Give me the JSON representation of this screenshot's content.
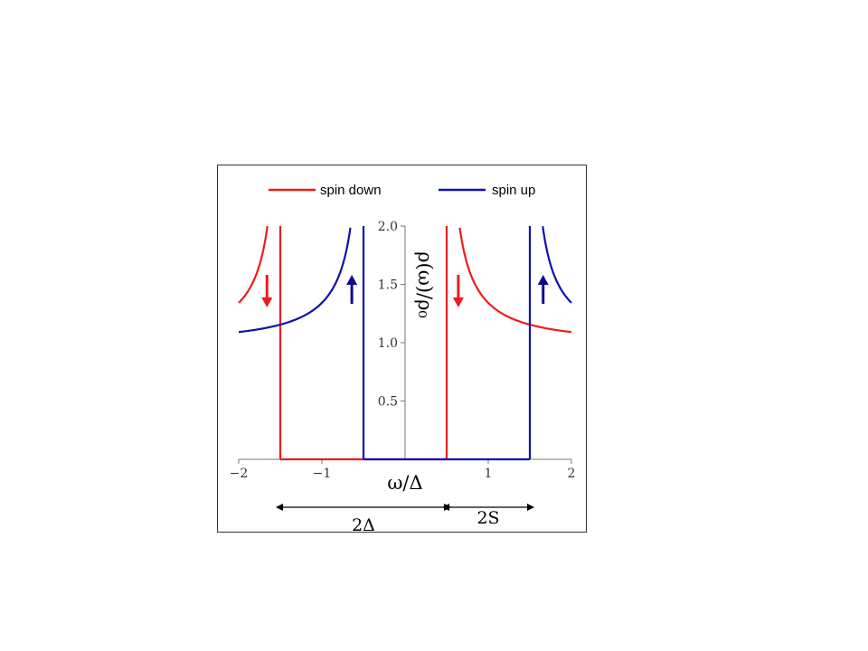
{
  "chart_data": {
    "type": "line",
    "xlabel": "ω/Δ",
    "ylabel": "ρ(ω)/ρ₀",
    "xlim": [
      -2,
      2
    ],
    "ylim": [
      0,
      2.0
    ],
    "x_ticks": [
      -2,
      -1,
      1,
      2
    ],
    "x_tick_labels": [
      "−2",
      "−1",
      "1",
      "2"
    ],
    "y_ticks": [
      0.5,
      1.0,
      1.5,
      2.0
    ],
    "y_tick_labels": [
      "0.5",
      "1.0",
      "1.5",
      "2.0"
    ],
    "params": {
      "gap": 1.0,
      "splitting": 0.5
    },
    "series": [
      {
        "name": "spin down",
        "color": "#ee1c1c",
        "gap_edges": [
          -1.5,
          0.5
        ],
        "shift": -0.5
      },
      {
        "name": "spin up",
        "color": "#1010b0",
        "gap_edges": [
          -0.5,
          1.5
        ],
        "shift": 0.5
      }
    ],
    "arrows": [
      {
        "x": -1.66,
        "direction": "down",
        "color": "#ee1c1c"
      },
      {
        "x": -0.64,
        "direction": "up",
        "color": "#0b0b8a"
      },
      {
        "x": 0.64,
        "direction": "down",
        "color": "#ee1c1c"
      },
      {
        "x": 1.66,
        "direction": "up",
        "color": "#0b0b8a"
      }
    ],
    "annotations": [
      {
        "label": "2Δ",
        "from": -1.5,
        "to": 0.5
      },
      {
        "label": "2S",
        "from": 0.5,
        "to": 1.5
      }
    ],
    "legend": {
      "position": "top",
      "items": [
        "spin down",
        "spin up"
      ]
    },
    "grid": false
  }
}
